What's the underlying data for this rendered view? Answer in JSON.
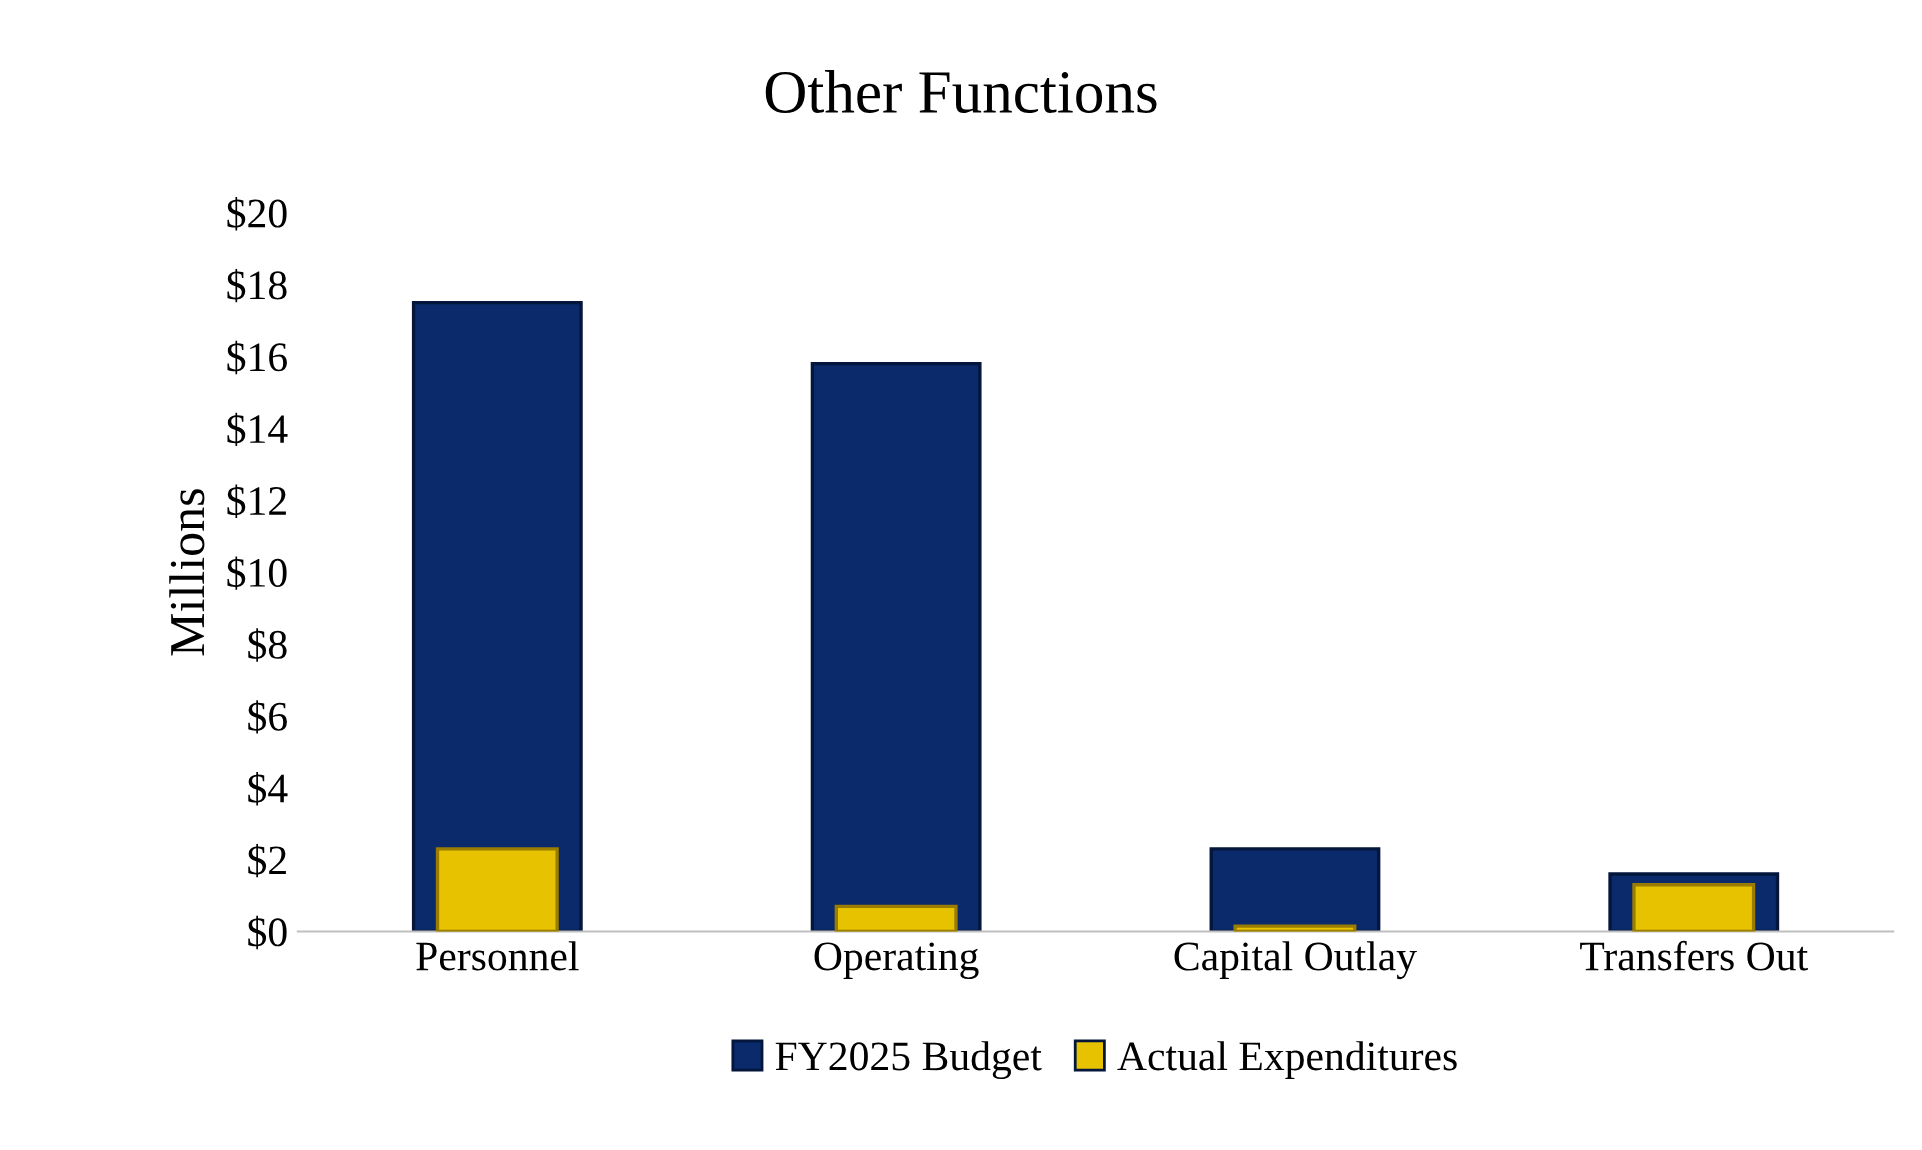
{
  "chart_data": {
    "type": "bar",
    "title": "Other Functions",
    "ylabel": "Millions",
    "categories": [
      "Personnel",
      "Operating",
      "Capital Outlay",
      "Transfers Out"
    ],
    "series": [
      {
        "name": "FY2025 Budget",
        "color": "#0a2a6b",
        "values": [
          17.5,
          15.8,
          2.3,
          1.6
        ]
      },
      {
        "name": "Actual Expenditures",
        "color": "#e6c200",
        "values": [
          2.3,
          0.7,
          0.15,
          1.3
        ]
      }
    ],
    "ylim": [
      0,
      20
    ],
    "yticks": [
      {
        "value": 0,
        "label": "$0"
      },
      {
        "value": 2,
        "label": "$2"
      },
      {
        "value": 4,
        "label": "$4"
      },
      {
        "value": 6,
        "label": "$6"
      },
      {
        "value": 8,
        "label": "$8"
      },
      {
        "value": 10,
        "label": "$10"
      },
      {
        "value": 12,
        "label": "$12"
      },
      {
        "value": 14,
        "label": "$14"
      },
      {
        "value": 16,
        "label": "$16"
      },
      {
        "value": 18,
        "label": "$18"
      },
      {
        "value": 20,
        "label": "$20"
      }
    ],
    "grid": false,
    "legend": "bottom"
  }
}
